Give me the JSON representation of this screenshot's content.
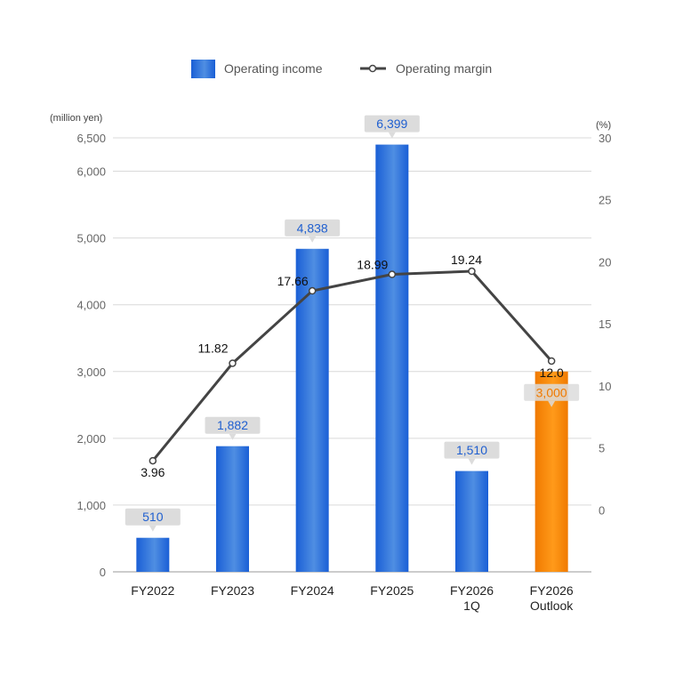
{
  "legend": {
    "income_label": "Operating income",
    "margin_label": "Operating margin"
  },
  "colors": {
    "bar_blue_dark": "#1a5fd6",
    "bar_blue_light": "#4f8ee2",
    "bar_orange_dark": "#f07a00",
    "bar_orange_light": "#ff9a1a",
    "line": "#444444",
    "label_box": "#dcdcdc",
    "label_blue_text": "#1f5fd0",
    "label_orange_text": "#f07a00",
    "grid": "#d9d9d9"
  },
  "chart_data": {
    "type": "bar",
    "categories": [
      [
        "FY2022"
      ],
      [
        "FY2023"
      ],
      [
        "FY2024"
      ],
      [
        "FY2025"
      ],
      [
        "FY2026",
        "1Q"
      ],
      [
        "FY2026",
        "Outlook"
      ]
    ],
    "series": [
      {
        "name": "Operating income",
        "type": "bar",
        "axis": "left",
        "values": [
          510,
          1882,
          4838,
          6399,
          1510,
          3000
        ],
        "labels": [
          "510",
          "1,882",
          "4,838",
          "6,399",
          "1,510",
          "3,000"
        ],
        "highlight_last": true
      },
      {
        "name": "Operating margin",
        "type": "line",
        "axis": "right",
        "values": [
          3.96,
          11.82,
          17.66,
          18.99,
          19.24,
          12.0
        ],
        "labels": [
          "3.96",
          "11.82",
          "17.66",
          "18.99",
          "19.24",
          "12.0"
        ]
      }
    ],
    "left_axis": {
      "unit": "(million yen)",
      "min": 0,
      "max": 6500,
      "ticks": [
        0,
        1000,
        2000,
        3000,
        4000,
        5000,
        6000,
        6500
      ],
      "tick_labels": [
        "0",
        "1,000",
        "2,000",
        "3,000",
        "4,000",
        "5,000",
        "6,000",
        "6,500"
      ]
    },
    "right_axis": {
      "unit": "(%)",
      "min": -5,
      "max": 30,
      "ticks": [
        0,
        5,
        10,
        15,
        20,
        25,
        30
      ],
      "tick_labels": [
        "0",
        "5",
        "10",
        "15",
        "20",
        "25",
        "30"
      ]
    },
    "grid": true,
    "legend_position": "top-center"
  }
}
